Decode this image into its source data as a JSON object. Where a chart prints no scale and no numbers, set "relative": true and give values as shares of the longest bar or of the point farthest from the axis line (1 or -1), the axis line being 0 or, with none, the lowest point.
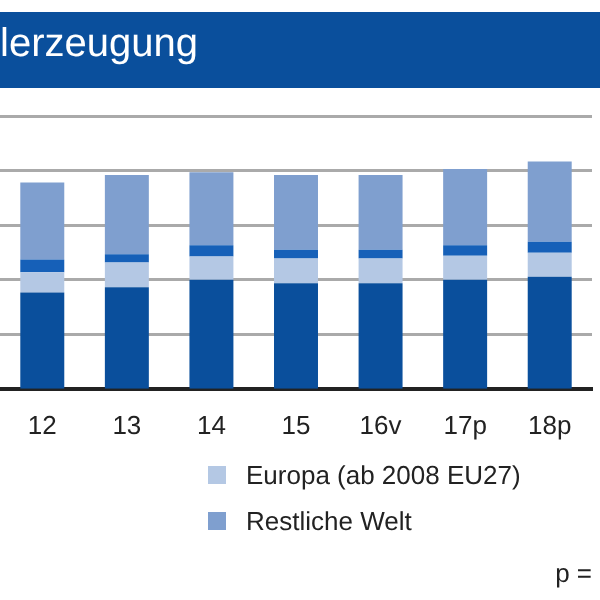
{
  "chart_data": {
    "type": "bar",
    "title": "lerzeugung",
    "stacked": true,
    "relative": true,
    "grid": "y",
    "legend": "bottom",
    "categories": [
      "12",
      "13",
      "14",
      "15",
      "16v",
      "17p",
      "18p"
    ],
    "series": [
      {
        "color": "#0a4f9c",
        "values": [
          0.424,
          0.447,
          0.48,
          0.464,
          0.464,
          0.48,
          0.493
        ]
      },
      {
        "name": "Europa (ab 2008 EU27)",
        "color": "#b4c8e4",
        "values": [
          0.089,
          0.109,
          0.102,
          0.109,
          0.109,
          0.105,
          0.105
        ]
      },
      {
        "color": "#1660b8",
        "values": [
          0.056,
          0.036,
          0.049,
          0.039,
          0.039,
          0.046,
          0.049
        ]
      },
      {
        "name": "Restliche Welt",
        "color": "#7f9fcf",
        "values": [
          0.339,
          0.349,
          0.322,
          0.329,
          0.329,
          0.336,
          0.353
        ]
      }
    ],
    "annotations": [
      "p ="
    ]
  }
}
